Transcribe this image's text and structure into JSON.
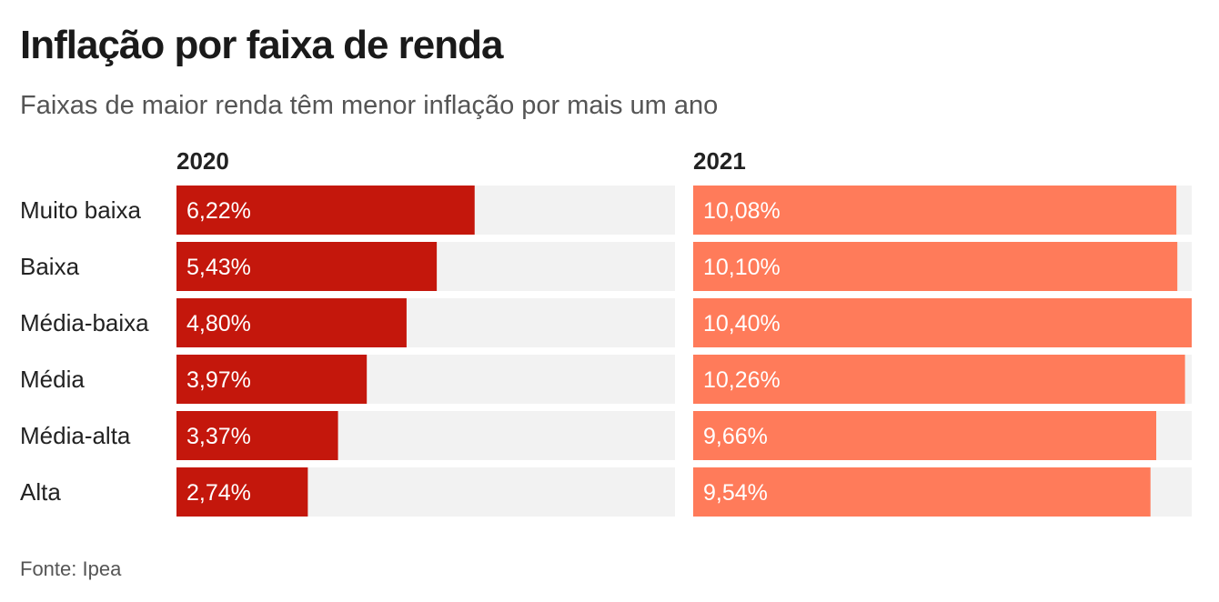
{
  "header": {
    "title": "Inflação por faixa de renda",
    "subtitle": "Faixas de maior renda têm menor inflação por mais um ano"
  },
  "footer": {
    "source": "Fonte: Ipea"
  },
  "chart_data": {
    "type": "bar",
    "orientation": "horizontal",
    "layout": "small-multiples",
    "categories": [
      "Muito baixa",
      "Baixa",
      "Média-baixa",
      "Média",
      "Média-alta",
      "Alta"
    ],
    "track_color": "#f2f2f2",
    "series": [
      {
        "name": "2020",
        "color": "#c4170c",
        "values": [
          6.22,
          5.43,
          4.8,
          3.97,
          3.37,
          2.74
        ],
        "labels": [
          "6,22%",
          "5,43%",
          "4,80%",
          "3,97%",
          "3,37%",
          "2,74%"
        ],
        "xlim": [
          0,
          10.4
        ]
      },
      {
        "name": "2021",
        "color": "#ff7b5a",
        "values": [
          10.08,
          10.1,
          10.4,
          10.26,
          9.66,
          9.54
        ],
        "labels": [
          "10,08%",
          "10,10%",
          "10,40%",
          "10,26%",
          "9,66%",
          "9,54%"
        ],
        "xlim": [
          0,
          10.4
        ]
      }
    ]
  }
}
